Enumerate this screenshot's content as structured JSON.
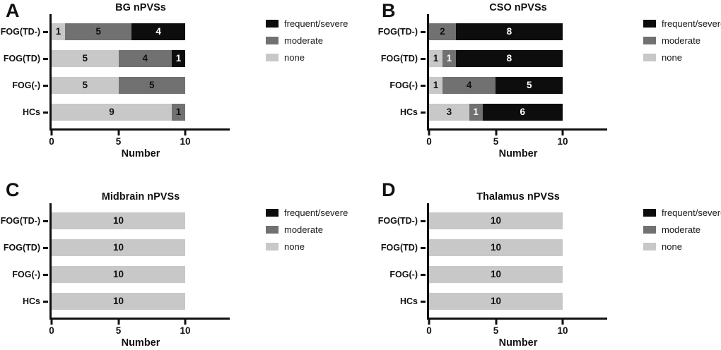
{
  "figure": {
    "background": "#ffffff"
  },
  "colors": {
    "frequent/severe": "#0d0d0d",
    "moderate": "#717171",
    "none": "#c8c8c8",
    "axis": "#111111",
    "label_dark": "#111111",
    "label_light": "#ffffff"
  },
  "legend": {
    "items": [
      "frequent/severe",
      "moderate",
      "none"
    ]
  },
  "chart_data": [
    {
      "type": "bar",
      "panel_label": "A",
      "title": "BG nPVSs",
      "orientation": "horizontal",
      "stacked": true,
      "xlabel": "Number",
      "xlim": [
        0,
        13
      ],
      "xticks": [
        0,
        5,
        10
      ],
      "legend_position": "right",
      "categories": [
        "FOG(TD-)",
        "FOG(TD)",
        "FOG(-)",
        "HCs"
      ],
      "series": [
        {
          "name": "none",
          "values": [
            1,
            5,
            5,
            9
          ],
          "label_colors": [
            "dark",
            "dark",
            "dark",
            "dark"
          ]
        },
        {
          "name": "moderate",
          "values": [
            5,
            4,
            5,
            1
          ],
          "label_colors": [
            "dark",
            "dark",
            "dark",
            "dark"
          ]
        },
        {
          "name": "frequent/severe",
          "values": [
            4,
            1,
            0,
            0
          ],
          "label_colors": [
            "light",
            "light",
            "",
            ""
          ]
        }
      ]
    },
    {
      "type": "bar",
      "panel_label": "B",
      "title": "CSO nPVSs",
      "orientation": "horizontal",
      "stacked": true,
      "xlabel": "Number",
      "xlim": [
        0,
        13
      ],
      "xticks": [
        0,
        5,
        10
      ],
      "legend_position": "right",
      "categories": [
        "FOG(TD-)",
        "FOG(TD)",
        "FOG(-)",
        "HCs"
      ],
      "series": [
        {
          "name": "none",
          "values": [
            0,
            1,
            1,
            3
          ],
          "label_colors": [
            "",
            "dark",
            "dark",
            "dark"
          ]
        },
        {
          "name": "moderate",
          "values": [
            2,
            1,
            4,
            1
          ],
          "label_colors": [
            "dark",
            "light",
            "dark",
            "light"
          ]
        },
        {
          "name": "frequent/severe",
          "values": [
            8,
            8,
            5,
            6
          ],
          "label_colors": [
            "light",
            "light",
            "light",
            "light"
          ]
        }
      ]
    },
    {
      "type": "bar",
      "panel_label": "C",
      "title": "Midbrain nPVSs",
      "orientation": "horizontal",
      "stacked": true,
      "xlabel": "Number",
      "xlim": [
        0,
        13
      ],
      "xticks": [
        0,
        5,
        10
      ],
      "legend_position": "right",
      "categories": [
        "FOG(TD-)",
        "FOG(TD)",
        "FOG(-)",
        "HCs"
      ],
      "series": [
        {
          "name": "none",
          "values": [
            10,
            10,
            10,
            10
          ],
          "label_colors": [
            "dark",
            "dark",
            "dark",
            "dark"
          ]
        },
        {
          "name": "moderate",
          "values": [
            0,
            0,
            0,
            0
          ],
          "label_colors": [
            "",
            "",
            "",
            ""
          ]
        },
        {
          "name": "frequent/severe",
          "values": [
            0,
            0,
            0,
            0
          ],
          "label_colors": [
            "",
            "",
            "",
            ""
          ]
        }
      ]
    },
    {
      "type": "bar",
      "panel_label": "D",
      "title": "Thalamus nPVSs",
      "orientation": "horizontal",
      "stacked": true,
      "xlabel": "Number",
      "xlim": [
        0,
        13
      ],
      "xticks": [
        0,
        5,
        10
      ],
      "legend_position": "right",
      "categories": [
        "FOG(TD-)",
        "FOG(TD)",
        "FOG(-)",
        "HCs"
      ],
      "series": [
        {
          "name": "none",
          "values": [
            10,
            10,
            10,
            10
          ],
          "label_colors": [
            "dark",
            "dark",
            "dark",
            "dark"
          ]
        },
        {
          "name": "moderate",
          "values": [
            0,
            0,
            0,
            0
          ],
          "label_colors": [
            "",
            "",
            "",
            ""
          ]
        },
        {
          "name": "frequent/severe",
          "values": [
            0,
            0,
            0,
            0
          ],
          "label_colors": [
            "",
            "",
            "",
            ""
          ]
        }
      ]
    }
  ]
}
